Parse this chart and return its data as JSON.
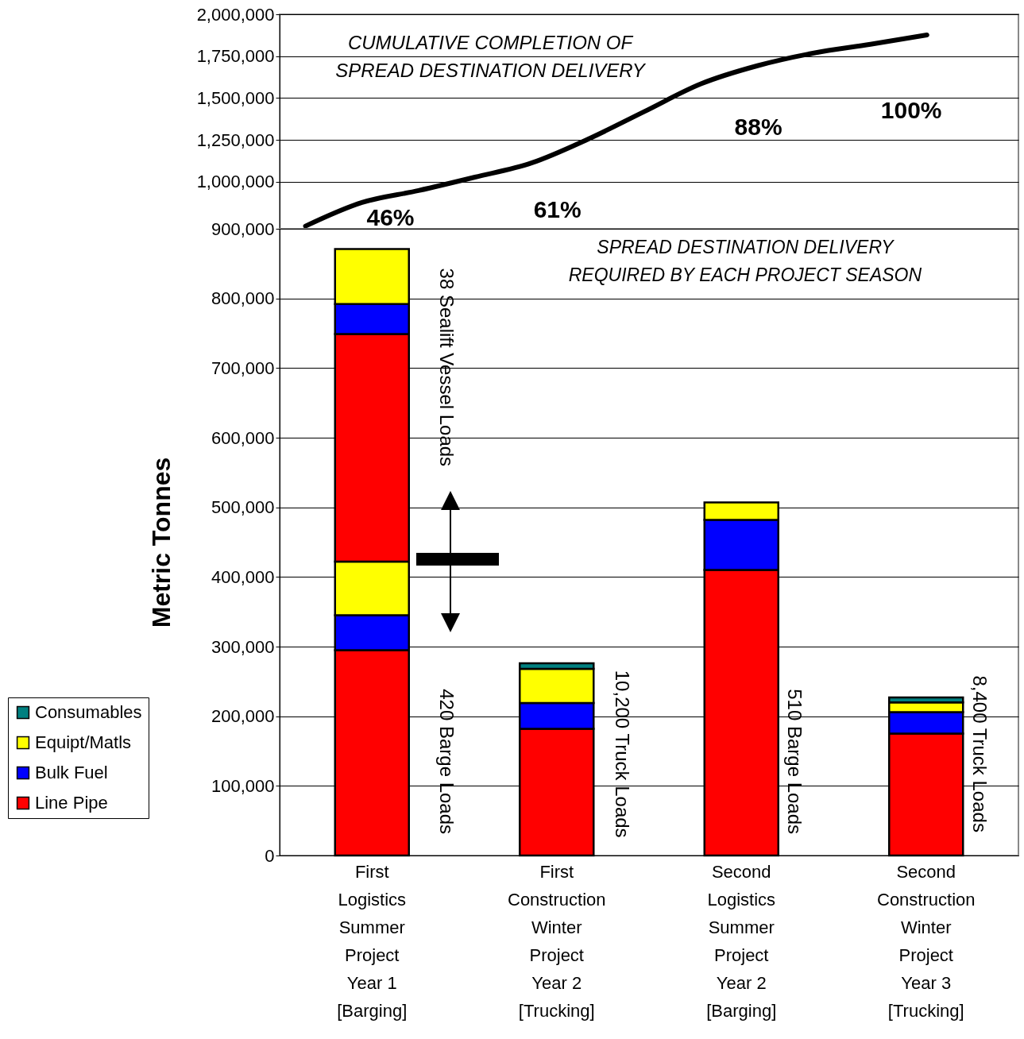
{
  "chart_data": [
    {
      "type": "line",
      "categories": [
        null,
        null,
        null,
        null,
        null,
        null,
        null,
        null,
        null,
        null,
        null,
        null
      ],
      "series": [
        {
          "color": "#000000",
          "values": [
            736000,
            877000,
            948000,
            1028000,
            1113000,
            1255000,
            1420000,
            1585000,
            1693000,
            1769000,
            1821000,
            1877000
          ]
        }
      ],
      "ylim": [
        720000,
        2000000
      ],
      "yticks": [
        {
          "value": 1000000,
          "label": "1,000,000"
        },
        {
          "value": 1250000,
          "label": "1,250,000"
        },
        {
          "value": 1500000,
          "label": "1,500,000"
        },
        {
          "value": 1750000,
          "label": "1,750,000"
        },
        {
          "value": 2000000,
          "label": "2,000,000"
        }
      ],
      "grid": "y",
      "tick_labels": "y",
      "annotations": [
        "CUMULATIVE COMPLETION OF\nSPREAD DESTINATION DELIVERY",
        "46%",
        "61%",
        "88%",
        "100%"
      ]
    },
    {
      "type": "bar",
      "stacked": true,
      "categories": [
        "First\nLogistics\nSummer\nProject\nYear 1\n[Barging]",
        "First\nConstruction\nWinter\nProject\nYear 2\n[Trucking]",
        "Second\nLogistics\nSummer\nProject\nYear 2\n[Barging]",
        "Second\nConstruction\nWinter\nProject\nYear 3\n[Trucking]"
      ],
      "series": [
        {
          "name": "Line Pipe",
          "color": "#ff0000",
          "values": [
            295000,
            182000,
            410000,
            175000
          ]
        },
        {
          "name": "Bulk Fuel",
          "color": "#0000ff",
          "values": [
            50000,
            37000,
            72000,
            31000
          ]
        },
        {
          "name": "Equipt/Matls",
          "color": "#ffff00",
          "values": [
            77000,
            49000,
            25000,
            14000
          ]
        },
        {
          "name": "Consumables",
          "color": "#008080",
          "values": [
            null,
            8000,
            null,
            7000
          ]
        },
        {
          "color": "#ff0000",
          "values": [
            327000,
            null,
            null,
            null
          ]
        },
        {
          "color": "#0000ff",
          "values": [
            43000,
            null,
            null,
            null
          ]
        },
        {
          "color": "#ffff00",
          "values": [
            79000,
            null,
            null,
            null
          ]
        }
      ],
      "ylim": [
        0,
        900000
      ],
      "yticks": [
        0,
        {
          "value": 100000,
          "label": "100,000"
        },
        {
          "value": 200000,
          "label": "200,000"
        },
        {
          "value": 300000,
          "label": "300,000"
        },
        {
          "value": 400000,
          "label": "400,000"
        },
        {
          "value": 500000,
          "label": "500,000"
        },
        {
          "value": 600000,
          "label": "600,000"
        },
        {
          "value": 700000,
          "label": "700,000"
        },
        {
          "value": 800000,
          "label": "800,000"
        },
        {
          "value": 900000,
          "label": "900,000"
        }
      ],
      "ylabel": "Metric Tonnes",
      "grid": "y",
      "legend": "bottom left",
      "annotations": [
        "SPREAD DESTINATION DELIVERY\nREQUIRED BY EACH  PROJECT SEASON",
        "38 Sealift Vessel Loads",
        "420 Barge Loads",
        "10,200 Truck Loads",
        "510 Barge Loads",
        "8,400 Truck Loads"
      ]
    }
  ]
}
